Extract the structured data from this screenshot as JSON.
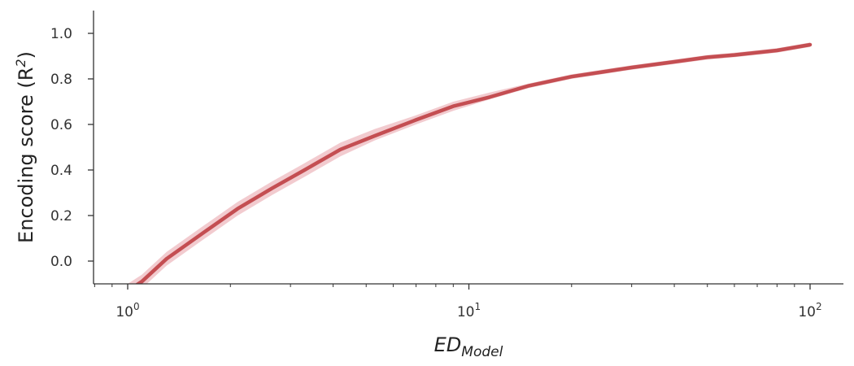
{
  "chart_data": {
    "type": "line",
    "xscale": "log",
    "xlim": [
      0.8,
      120
    ],
    "ylim": [
      -0.1,
      1.1
    ],
    "grid": false,
    "legend": "none",
    "xlabel": {
      "main": "ED",
      "sub": "Model"
    },
    "ylabel": {
      "main": "Encoding score (R",
      "sup": "2",
      "close": ")"
    },
    "x_ticks": [
      {
        "base": "10",
        "exp": "0",
        "value": 1
      },
      {
        "base": "10",
        "exp": "1",
        "value": 10
      },
      {
        "base": "10",
        "exp": "2",
        "value": 100
      }
    ],
    "y_ticks": [
      "0.0",
      "0.2",
      "0.4",
      "0.6",
      "0.8",
      "1.0"
    ],
    "series": [
      {
        "color": "#c44e52",
        "band_color": "#e8a0a8",
        "x": [
          1.0,
          1.1,
          1.3,
          1.65,
          2.1,
          2.65,
          3.3,
          4.2,
          5.3,
          7.0,
          9.0,
          11.5,
          15.0,
          20.0,
          24.5,
          30.0,
          40.0,
          50.0,
          60.0,
          80.0,
          100.0
        ],
        "y": [
          -0.13,
          -0.09,
          0.01,
          0.12,
          0.23,
          0.32,
          0.4,
          0.49,
          0.55,
          0.62,
          0.68,
          0.72,
          0.77,
          0.81,
          0.83,
          0.85,
          0.875,
          0.895,
          0.905,
          0.925,
          0.95
        ],
        "lower": [
          -0.16,
          -0.12,
          -0.02,
          0.09,
          0.2,
          0.29,
          0.37,
          0.46,
          0.53,
          0.6,
          0.66,
          0.71,
          0.76,
          0.8,
          0.82,
          0.84,
          0.865,
          0.885,
          0.895,
          0.915,
          0.94
        ],
        "upper": [
          -0.1,
          -0.06,
          0.04,
          0.15,
          0.26,
          0.35,
          0.43,
          0.52,
          0.58,
          0.64,
          0.7,
          0.74,
          0.78,
          0.82,
          0.84,
          0.86,
          0.885,
          0.905,
          0.915,
          0.935,
          0.96
        ]
      }
    ]
  }
}
